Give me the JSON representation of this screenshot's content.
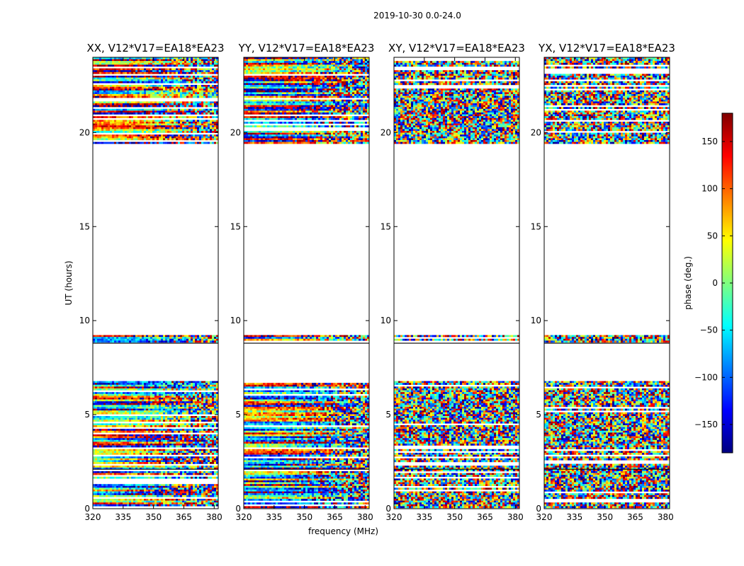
{
  "suptitle": "2019-10-30 0.0-24.0",
  "colors": {
    "colormap": [
      "#00007f",
      "#0000ff",
      "#007fff",
      "#00ffff",
      "#7fff7f",
      "#ffff00",
      "#ff7f00",
      "#ff0000",
      "#7f0000"
    ],
    "background": "#ffffff",
    "axes_edge": "#000000"
  },
  "chart_data": [
    {
      "type": "heatmap",
      "title": "XX, V12*V17=EA18*EA23",
      "xlabel": "",
      "ylabel": "UT (hours)",
      "xlim": [
        320,
        382
      ],
      "ylim": [
        0,
        24
      ],
      "xticks": [
        "320",
        "335",
        "350",
        "365",
        "380"
      ],
      "yticks": [
        "0",
        "5",
        "10",
        "15",
        "20"
      ],
      "data_time_ranges_hours": [
        [
          0,
          6.8
        ],
        [
          8.8,
          9.2
        ],
        [
          19.4,
          24
        ]
      ],
      "pattern": "coherent"
    },
    {
      "type": "heatmap",
      "title": "YY, V12*V17=EA18*EA23",
      "xlabel": "frequency (MHz)",
      "ylabel": "",
      "xlim": [
        320,
        382
      ],
      "ylim": [
        0,
        24
      ],
      "xticks": [
        "320",
        "335",
        "350",
        "365",
        "380"
      ],
      "yticks": [
        "0",
        "5",
        "10",
        "15",
        "20"
      ],
      "data_time_ranges_hours": [
        [
          0,
          6.8
        ],
        [
          8.8,
          9.2
        ],
        [
          19.4,
          24
        ]
      ],
      "pattern": "coherent"
    },
    {
      "type": "heatmap",
      "title": "XY, V12*V17=EA18*EA23",
      "xlabel": "",
      "ylabel": "",
      "xlim": [
        320,
        382
      ],
      "ylim": [
        0,
        24
      ],
      "xticks": [
        "320",
        "335",
        "350",
        "365",
        "380"
      ],
      "yticks": [
        "0",
        "5",
        "10",
        "15",
        "20"
      ],
      "data_time_ranges_hours": [
        [
          0,
          6.8
        ],
        [
          8.8,
          9.2
        ],
        [
          19.4,
          24
        ]
      ],
      "pattern": "noise"
    },
    {
      "type": "heatmap",
      "title": "YX, V12*V17=EA18*EA23",
      "xlabel": "",
      "ylabel": "",
      "xlim": [
        320,
        382
      ],
      "ylim": [
        0,
        24
      ],
      "xticks": [
        "320",
        "335",
        "350",
        "365",
        "380"
      ],
      "yticks": [
        "0",
        "5",
        "10",
        "15",
        "20"
      ],
      "data_time_ranges_hours": [
        [
          0,
          6.8
        ],
        [
          8.8,
          9.2
        ],
        [
          19.4,
          24
        ]
      ],
      "pattern": "noise"
    }
  ],
  "colorbar": {
    "label": "phase (deg.)",
    "range": [
      -180,
      180
    ],
    "ticks": [
      "150",
      "100",
      "50",
      "0",
      "−50",
      "−100",
      "−150"
    ],
    "tick_values": [
      150,
      100,
      50,
      0,
      -50,
      -100,
      -150
    ]
  }
}
